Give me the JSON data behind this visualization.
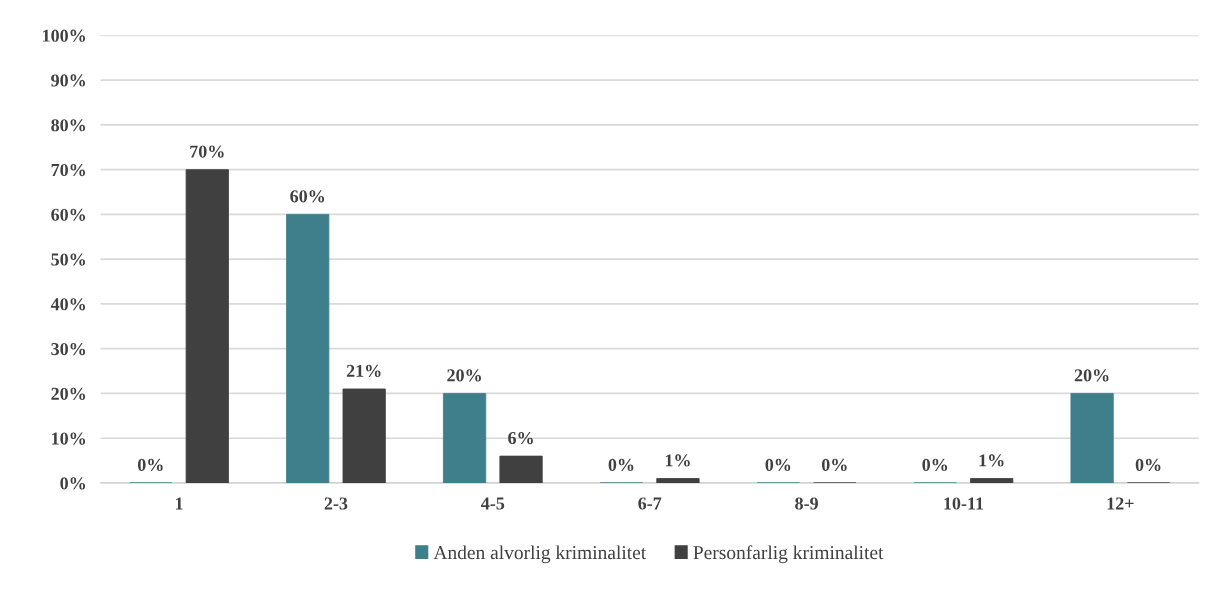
{
  "chart_data": {
    "type": "bar",
    "categories": [
      "1",
      "2-3",
      "4-5",
      "6-7",
      "8-9",
      "10-11",
      "12+"
    ],
    "series": [
      {
        "name": "Anden alvorlig kriminalitet",
        "color": "#3e7f8b",
        "values": [
          0,
          60,
          20,
          0,
          0,
          0,
          20
        ],
        "value_labels": [
          "0%",
          "60%",
          "20%",
          "0%",
          "0%",
          "0%",
          "20%"
        ]
      },
      {
        "name": "Personfarlig kriminalitet",
        "color": "#404040",
        "values": [
          70,
          21,
          6,
          1,
          0,
          1,
          0
        ],
        "value_labels": [
          "70%",
          "21%",
          "6%",
          "1%",
          "0%",
          "1%",
          "0%"
        ]
      }
    ],
    "ylim": [
      0,
      100
    ],
    "yticks": [
      {
        "value": 0,
        "label": "0%"
      },
      {
        "value": 10,
        "label": "10%"
      },
      {
        "value": 20,
        "label": "20%"
      },
      {
        "value": 30,
        "label": "30%"
      },
      {
        "value": 40,
        "label": "40%"
      },
      {
        "value": 50,
        "label": "50%"
      },
      {
        "value": 60,
        "label": "60%"
      },
      {
        "value": 70,
        "label": "70%"
      },
      {
        "value": 80,
        "label": "80%"
      },
      {
        "value": 90,
        "label": "90%"
      },
      {
        "value": 100,
        "label": "100%"
      }
    ],
    "grid": "y",
    "legend": "bottom"
  }
}
